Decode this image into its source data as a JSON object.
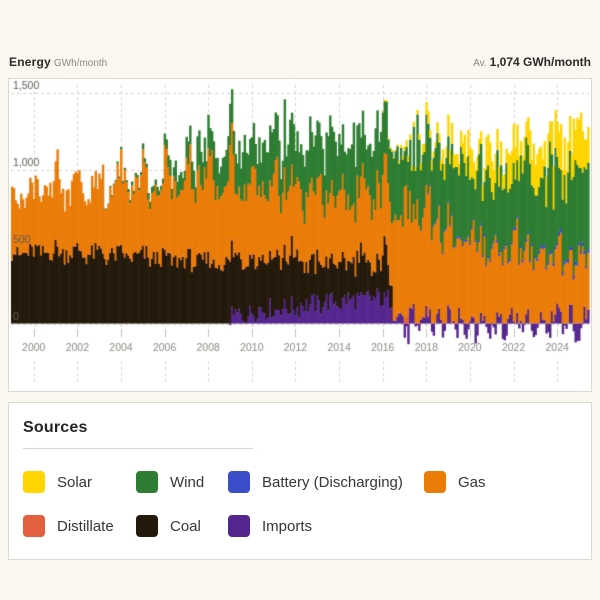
{
  "header": {
    "title": "Energy",
    "unit": "GWh/month",
    "average_prefix": "Av.",
    "average_value": "1,074 GWh/month"
  },
  "legend": {
    "title": "Sources",
    "items": [
      {
        "label": "Solar",
        "color": "#fed500"
      },
      {
        "label": "Wind",
        "color": "#2e7d32"
      },
      {
        "label": "Battery (Discharging)",
        "color": "#3a4ec9"
      },
      {
        "label": "Gas",
        "color": "#ea7c08"
      },
      {
        "label": "Distillate",
        "color": "#e2603f"
      },
      {
        "label": "Coal",
        "color": "#241a0c"
      },
      {
        "label": "Imports",
        "color": "#55278e"
      }
    ]
  },
  "chart_data": {
    "type": "area",
    "stacked": true,
    "title": "Energy",
    "ylabel": "GWh/month",
    "average": "1,074 GWh/month",
    "x_range": [
      "1999-01",
      "2025-06"
    ],
    "resolution": "quarterly estimates of monthly GWh, read from chart",
    "axis": {
      "start_year": 1999,
      "months": 318,
      "ylim": [
        -260,
        1550
      ],
      "grid": "dashed",
      "y_ticks": [
        {
          "v": 1500,
          "label": "1,500"
        },
        {
          "v": 1000,
          "label": "1,000"
        },
        {
          "v": 500,
          "label": "500"
        },
        {
          "v": 0,
          "label": "0"
        }
      ],
      "x_ticks": [
        2000,
        2002,
        2004,
        2006,
        2008,
        2010,
        2012,
        2014,
        2016,
        2018,
        2020,
        2022,
        2024
      ]
    },
    "style": {
      "grid_color": "#d6d2ca",
      "tick_color": "#c6c2ba",
      "ytick_text": "#5f5c56",
      "xtick_text": "#8e8b85"
    },
    "series": [
      {
        "name": "Imports",
        "color": "#55278e",
        "jitter": 70,
        "jitter_mode": "additive",
        "values": [
          0,
          0,
          0,
          0,
          0,
          0,
          0,
          0,
          0,
          0,
          0,
          0,
          0,
          0,
          0,
          0,
          0,
          0,
          0,
          0,
          0,
          0,
          0,
          0,
          0,
          0,
          0,
          0,
          0,
          0,
          0,
          0,
          0,
          0,
          0,
          0,
          0,
          0,
          0,
          0,
          40,
          60,
          50,
          60,
          80,
          100,
          90,
          100,
          90,
          110,
          100,
          110,
          100,
          130,
          120,
          130,
          120,
          150,
          140,
          150,
          130,
          160,
          150,
          160,
          140,
          170,
          160,
          170,
          150,
          160,
          80,
          60,
          -80,
          60,
          -60,
          40,
          80,
          -40,
          60,
          -60,
          60,
          -50,
          70,
          -40,
          50,
          -60,
          60,
          -50,
          -40,
          70,
          -50,
          60,
          60,
          -50,
          50,
          -60,
          -50,
          60,
          -60,
          50,
          70,
          -60,
          60,
          -70,
          -60,
          50
        ]
      },
      {
        "name": "Coal",
        "color": "#241a0c",
        "jitter": 0.15,
        "jitter_mode": "scale",
        "values": [
          470,
          440,
          450,
          460,
          480,
          450,
          460,
          470,
          490,
          450,
          460,
          470,
          480,
          440,
          450,
          460,
          470,
          430,
          440,
          450,
          460,
          420,
          430,
          440,
          450,
          410,
          420,
          430,
          440,
          400,
          410,
          420,
          430,
          390,
          400,
          410,
          420,
          380,
          390,
          400,
          400,
          360,
          370,
          380,
          380,
          340,
          350,
          360,
          370,
          330,
          340,
          350,
          360,
          260,
          260,
          270,
          280,
          240,
          250,
          260,
          270,
          230,
          240,
          250,
          300,
          200,
          150,
          250,
          330,
          160,
          0,
          0,
          0,
          0,
          0,
          0,
          0,
          0,
          0,
          0,
          0,
          0,
          0,
          0,
          0,
          0,
          0,
          0,
          0,
          0,
          0,
          0,
          0,
          0,
          0,
          0,
          0,
          0,
          0,
          0,
          0,
          0,
          0,
          0,
          0,
          0
        ]
      },
      {
        "name": "Distillate",
        "color": "#e2603f",
        "jitter": 0.9,
        "jitter_mode": "scale",
        "values": [
          8,
          3,
          3,
          4,
          8,
          3,
          3,
          4,
          8,
          3,
          3,
          4,
          8,
          3,
          3,
          4,
          8,
          3,
          3,
          4,
          8,
          3,
          3,
          4,
          8,
          3,
          3,
          4,
          8,
          3,
          3,
          4,
          8,
          3,
          3,
          4,
          8,
          3,
          3,
          4,
          8,
          3,
          3,
          4,
          8,
          3,
          3,
          4,
          8,
          3,
          3,
          4,
          8,
          3,
          3,
          4,
          8,
          3,
          3,
          4,
          8,
          3,
          3,
          4,
          8,
          3,
          3,
          4,
          8,
          3,
          3,
          4,
          30,
          5,
          4,
          6,
          10,
          4,
          4,
          5,
          12,
          4,
          4,
          5,
          8,
          3,
          3,
          4,
          8,
          3,
          3,
          4,
          10,
          4,
          4,
          5,
          8,
          3,
          3,
          4,
          8,
          3,
          3,
          4,
          8,
          3
        ]
      },
      {
        "name": "Gas",
        "color": "#ea7c08",
        "jitter": 0.2,
        "jitter_mode": "scale",
        "values": [
          420,
          330,
          360,
          390,
          460,
          350,
          380,
          420,
          520,
          380,
          400,
          440,
          500,
          370,
          390,
          430,
          520,
          390,
          410,
          450,
          540,
          400,
          430,
          470,
          560,
          420,
          450,
          490,
          600,
          450,
          480,
          520,
          650,
          480,
          500,
          540,
          620,
          460,
          490,
          530,
          640,
          450,
          470,
          510,
          560,
          420,
          440,
          480,
          540,
          400,
          430,
          460,
          520,
          390,
          420,
          450,
          500,
          380,
          400,
          430,
          480,
          370,
          390,
          420,
          500,
          400,
          430,
          460,
          550,
          500,
          650,
          680,
          750,
          650,
          680,
          640,
          700,
          560,
          580,
          540,
          650,
          520,
          540,
          500,
          560,
          460,
          480,
          440,
          520,
          430,
          450,
          410,
          540,
          440,
          460,
          420,
          480,
          390,
          410,
          380,
          440,
          350,
          370,
          340,
          420,
          340
        ]
      },
      {
        "name": "Battery (Discharging)",
        "color": "#3a4ec9",
        "jitter": 0.3,
        "jitter_mode": "scale",
        "values": [
          0,
          0,
          0,
          0,
          0,
          0,
          0,
          0,
          0,
          0,
          0,
          0,
          0,
          0,
          0,
          0,
          0,
          0,
          0,
          0,
          0,
          0,
          0,
          0,
          0,
          0,
          0,
          0,
          0,
          0,
          0,
          0,
          0,
          0,
          0,
          0,
          0,
          0,
          0,
          0,
          0,
          0,
          0,
          0,
          0,
          0,
          0,
          0,
          0,
          0,
          0,
          0,
          0,
          0,
          0,
          0,
          0,
          0,
          0,
          0,
          0,
          0,
          0,
          0,
          0,
          0,
          0,
          0,
          0,
          0,
          0,
          0,
          0,
          0,
          0,
          5,
          8,
          8,
          9,
          10,
          10,
          10,
          11,
          12,
          12,
          12,
          13,
          14,
          15,
          14,
          15,
          16,
          18,
          16,
          17,
          19,
          20,
          18,
          19,
          21,
          24,
          20,
          22,
          26,
          28,
          22
        ]
      },
      {
        "name": "Wind",
        "color": "#2e7d32",
        "jitter": 0.35,
        "jitter_mode": "scale",
        "values": [
          0,
          0,
          0,
          0,
          0,
          0,
          0,
          0,
          0,
          0,
          0,
          0,
          0,
          0,
          0,
          0,
          0,
          5,
          10,
          12,
          15,
          18,
          22,
          20,
          30,
          40,
          50,
          45,
          60,
          80,
          100,
          90,
          120,
          150,
          180,
          160,
          180,
          220,
          260,
          230,
          210,
          250,
          290,
          260,
          240,
          290,
          330,
          300,
          260,
          310,
          350,
          320,
          280,
          330,
          380,
          340,
          300,
          350,
          400,
          360,
          310,
          360,
          410,
          370,
          330,
          390,
          440,
          400,
          350,
          410,
          460,
          420,
          340,
          400,
          450,
          410,
          360,
          420,
          470,
          430,
          370,
          430,
          480,
          440,
          380,
          450,
          500,
          460,
          400,
          470,
          520,
          480,
          420,
          490,
          540,
          500,
          430,
          500,
          550,
          510,
          440,
          510,
          560,
          520,
          450,
          520
        ]
      },
      {
        "name": "Solar",
        "color": "#fed500",
        "jitter": 0.35,
        "jitter_mode": "scale",
        "values": [
          0,
          0,
          0,
          0,
          0,
          0,
          0,
          0,
          0,
          0,
          0,
          0,
          0,
          0,
          0,
          0,
          0,
          0,
          0,
          0,
          0,
          0,
          0,
          0,
          0,
          0,
          0,
          0,
          0,
          0,
          0,
          0,
          0,
          0,
          0,
          0,
          0,
          0,
          0,
          0,
          0,
          0,
          0,
          0,
          0,
          0,
          0,
          0,
          0,
          0,
          0,
          0,
          0,
          0,
          0,
          0,
          0,
          0,
          0,
          0,
          0,
          0,
          0,
          0,
          0,
          0,
          0,
          0,
          10,
          8,
          10,
          20,
          40,
          25,
          30,
          60,
          80,
          50,
          60,
          100,
          120,
          80,
          90,
          140,
          160,
          100,
          110,
          170,
          190,
          120,
          130,
          200,
          220,
          140,
          150,
          230,
          250,
          160,
          170,
          260,
          280,
          180,
          190,
          290,
          300,
          190
        ]
      }
    ]
  }
}
